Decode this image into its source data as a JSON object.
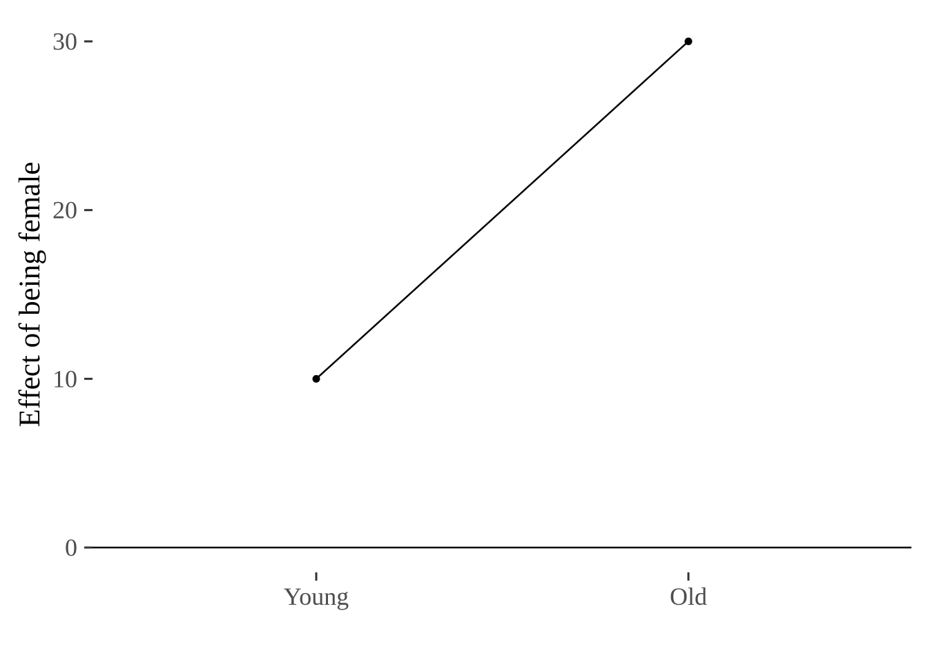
{
  "chart_data": {
    "type": "line",
    "title": "",
    "xlabel": "",
    "ylabel": "Effect of being female",
    "categories": [
      "Young",
      "Old"
    ],
    "series": [
      {
        "values": [
          10,
          30
        ]
      }
    ],
    "yticks": [
      0,
      10,
      20,
      30
    ],
    "ytick_labels": [
      "0",
      "10",
      "20",
      "30"
    ],
    "ylim": [
      0,
      30
    ],
    "grid": false,
    "zero_line": true,
    "colors": {
      "line": "#000000",
      "points": "#000000",
      "tick_labels": "#4d4d4d",
      "axis_title": "#000000",
      "ticks": "#333333"
    }
  }
}
